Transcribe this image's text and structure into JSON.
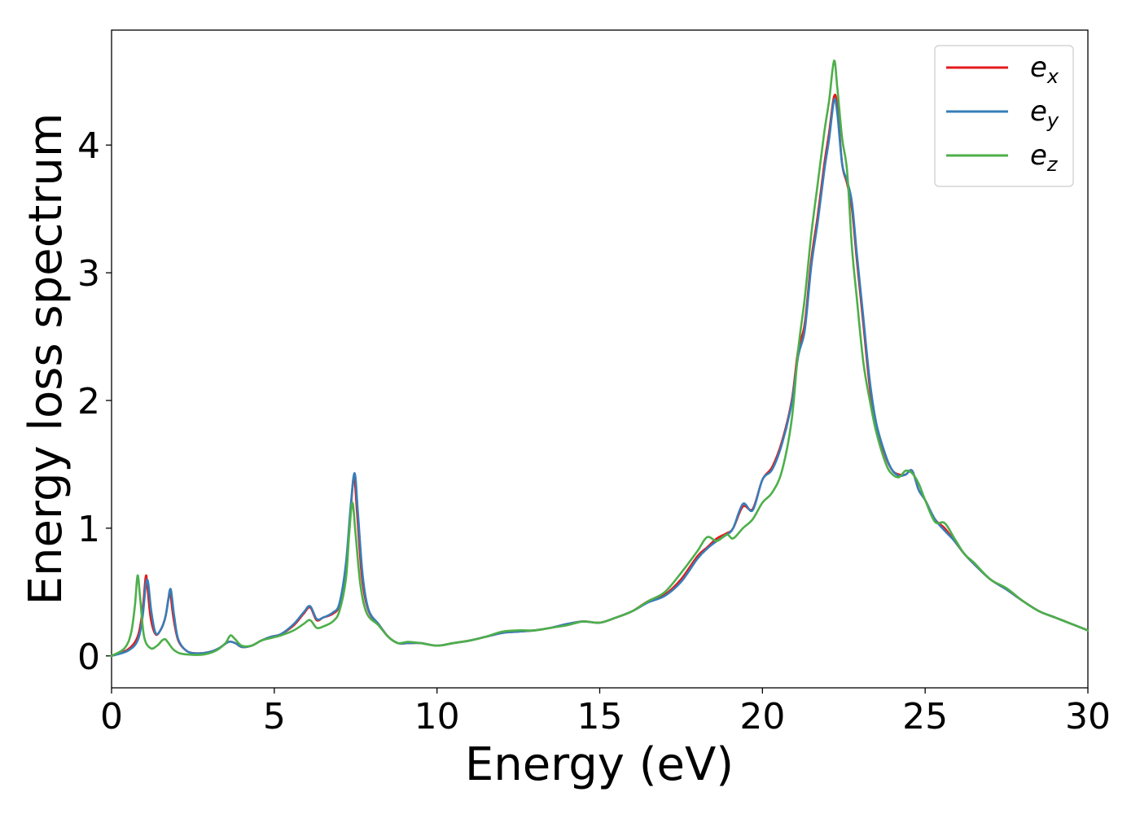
{
  "chart_data": {
    "type": "line",
    "title": "",
    "xlabel": "Energy (eV)",
    "ylabel": "Energy loss spectrum",
    "xlim": [
      0,
      30
    ],
    "ylim": [
      -0.25,
      4.9
    ],
    "xticks": [
      0,
      5,
      10,
      15,
      20,
      25,
      30
    ],
    "yticks": [
      0,
      1,
      2,
      3,
      4
    ],
    "grid": false,
    "legend": "top-right",
    "series": [
      {
        "name": "e",
        "subscript": "x",
        "color": "#e41a1c",
        "x": [
          0,
          0.5,
          0.8,
          0.95,
          1.05,
          1.1,
          1.2,
          1.35,
          1.5,
          1.65,
          1.75,
          1.8,
          1.9,
          2.05,
          2.3,
          2.6,
          3,
          3.3,
          3.6,
          3.8,
          4,
          4.3,
          4.6,
          4.9,
          5.2,
          5.6,
          5.9,
          6.1,
          6.3,
          6.5,
          6.8,
          7,
          7.2,
          7.35,
          7.45,
          7.55,
          7.7,
          7.9,
          8.2,
          8.5,
          8.8,
          9.1,
          9.5,
          10,
          10.5,
          11,
          11.5,
          12,
          12.5,
          13,
          13.5,
          14,
          14.5,
          15,
          15.5,
          16,
          16.5,
          17,
          17.5,
          18,
          18.3,
          18.6,
          18.9,
          19.1,
          19.4,
          19.7,
          20,
          20.3,
          20.6,
          20.9,
          21.1,
          21.3,
          21.5,
          21.7,
          21.9,
          22.05,
          22.2,
          22.3,
          22.45,
          22.6,
          22.75,
          22.9,
          23.1,
          23.3,
          23.5,
          23.8,
          24,
          24.2,
          24.4,
          24.6,
          24.8,
          25,
          25.3,
          25.6,
          25.9,
          26.2,
          26.5,
          27,
          27.5,
          28,
          28.5,
          29,
          29.5,
          30
        ],
        "values": [
          0,
          0.05,
          0.15,
          0.35,
          0.62,
          0.55,
          0.3,
          0.17,
          0.2,
          0.3,
          0.45,
          0.5,
          0.3,
          0.12,
          0.04,
          0.02,
          0.03,
          0.06,
          0.11,
          0.1,
          0.07,
          0.08,
          0.12,
          0.15,
          0.17,
          0.24,
          0.33,
          0.38,
          0.28,
          0.3,
          0.33,
          0.4,
          0.7,
          1.15,
          1.4,
          1.1,
          0.6,
          0.35,
          0.25,
          0.15,
          0.1,
          0.1,
          0.1,
          0.08,
          0.1,
          0.12,
          0.15,
          0.18,
          0.19,
          0.2,
          0.22,
          0.25,
          0.27,
          0.26,
          0.3,
          0.35,
          0.43,
          0.48,
          0.6,
          0.78,
          0.85,
          0.92,
          0.96,
          1.0,
          1.17,
          1.15,
          1.38,
          1.48,
          1.68,
          2.0,
          2.4,
          2.6,
          3.1,
          3.45,
          3.85,
          4.1,
          4.38,
          4.3,
          3.85,
          3.7,
          3.5,
          3.1,
          2.6,
          2.1,
          1.8,
          1.55,
          1.45,
          1.42,
          1.42,
          1.45,
          1.3,
          1.22,
          1.07,
          1.0,
          0.9,
          0.8,
          0.72,
          0.6,
          0.52,
          0.43,
          0.35,
          0.3,
          0.25,
          0.2
        ]
      },
      {
        "name": "e",
        "subscript": "y",
        "color": "#377eb8",
        "x": [
          0,
          0.5,
          0.8,
          0.95,
          1.05,
          1.12,
          1.22,
          1.35,
          1.5,
          1.65,
          1.75,
          1.82,
          1.92,
          2.05,
          2.3,
          2.6,
          3,
          3.3,
          3.6,
          3.8,
          4,
          4.3,
          4.6,
          4.9,
          5.2,
          5.6,
          5.9,
          6.1,
          6.3,
          6.5,
          6.8,
          7,
          7.2,
          7.35,
          7.47,
          7.57,
          7.72,
          7.9,
          8.2,
          8.5,
          8.8,
          9.1,
          9.5,
          10,
          10.5,
          11,
          11.5,
          12,
          12.5,
          13,
          13.5,
          14,
          14.5,
          15,
          15.5,
          16,
          16.5,
          17,
          17.5,
          18,
          18.3,
          18.6,
          18.9,
          19.1,
          19.4,
          19.7,
          20,
          20.3,
          20.6,
          20.9,
          21.1,
          21.3,
          21.5,
          21.7,
          21.9,
          22.05,
          22.2,
          22.3,
          22.45,
          22.6,
          22.75,
          22.9,
          23.1,
          23.3,
          23.5,
          23.8,
          24,
          24.2,
          24.4,
          24.6,
          24.8,
          25,
          25.3,
          25.6,
          25.9,
          26.2,
          26.5,
          27,
          27.5,
          28,
          28.5,
          29,
          29.5,
          30
        ],
        "values": [
          0,
          0.04,
          0.12,
          0.3,
          0.55,
          0.58,
          0.35,
          0.18,
          0.2,
          0.3,
          0.45,
          0.52,
          0.32,
          0.13,
          0.04,
          0.02,
          0.03,
          0.06,
          0.11,
          0.1,
          0.07,
          0.08,
          0.12,
          0.15,
          0.17,
          0.25,
          0.34,
          0.39,
          0.29,
          0.3,
          0.34,
          0.41,
          0.72,
          1.18,
          1.43,
          1.12,
          0.62,
          0.36,
          0.25,
          0.15,
          0.1,
          0.1,
          0.1,
          0.08,
          0.1,
          0.12,
          0.15,
          0.18,
          0.19,
          0.2,
          0.22,
          0.25,
          0.27,
          0.26,
          0.3,
          0.35,
          0.42,
          0.47,
          0.58,
          0.76,
          0.84,
          0.9,
          0.95,
          1.0,
          1.19,
          1.14,
          1.38,
          1.46,
          1.66,
          1.98,
          2.35,
          2.55,
          3.05,
          3.4,
          3.8,
          4.05,
          4.35,
          4.25,
          3.85,
          3.72,
          3.55,
          3.15,
          2.65,
          2.15,
          1.82,
          1.56,
          1.45,
          1.41,
          1.42,
          1.45,
          1.3,
          1.22,
          1.07,
          0.98,
          0.9,
          0.8,
          0.72,
          0.6,
          0.52,
          0.43,
          0.35,
          0.3,
          0.25,
          0.2
        ]
      },
      {
        "name": "e",
        "subscript": "z",
        "color": "#4daf4a",
        "x": [
          0,
          0.4,
          0.6,
          0.72,
          0.8,
          0.88,
          1,
          1.2,
          1.4,
          1.55,
          1.65,
          1.75,
          1.9,
          2.1,
          2.4,
          2.8,
          3.2,
          3.5,
          3.65,
          3.8,
          4,
          4.3,
          4.6,
          4.9,
          5.2,
          5.6,
          5.9,
          6.1,
          6.3,
          6.5,
          6.8,
          7,
          7.2,
          7.3,
          7.4,
          7.5,
          7.65,
          7.85,
          8.2,
          8.5,
          8.8,
          9.1,
          9.5,
          10,
          10.5,
          11,
          11.5,
          12,
          12.5,
          13,
          13.5,
          14,
          14.5,
          15,
          15.5,
          16,
          16.5,
          17,
          17.5,
          18,
          18.3,
          18.6,
          18.9,
          19.1,
          19.4,
          19.7,
          20,
          20.3,
          20.6,
          20.9,
          21.1,
          21.3,
          21.5,
          21.7,
          21.9,
          22.05,
          22.2,
          22.3,
          22.45,
          22.6,
          22.75,
          22.9,
          23.1,
          23.3,
          23.5,
          23.8,
          24,
          24.2,
          24.4,
          24.6,
          24.8,
          25,
          25.3,
          25.6,
          25.9,
          26.2,
          26.5,
          27,
          27.5,
          28,
          28.5,
          29,
          29.5,
          30
        ],
        "values": [
          0,
          0.06,
          0.18,
          0.4,
          0.63,
          0.45,
          0.15,
          0.06,
          0.08,
          0.12,
          0.13,
          0.1,
          0.05,
          0.02,
          0.01,
          0.01,
          0.04,
          0.1,
          0.16,
          0.13,
          0.08,
          0.08,
          0.12,
          0.14,
          0.16,
          0.2,
          0.25,
          0.28,
          0.22,
          0.23,
          0.27,
          0.35,
          0.6,
          0.95,
          1.2,
          0.95,
          0.55,
          0.33,
          0.24,
          0.15,
          0.1,
          0.11,
          0.1,
          0.08,
          0.1,
          0.12,
          0.15,
          0.19,
          0.2,
          0.2,
          0.22,
          0.24,
          0.27,
          0.26,
          0.3,
          0.35,
          0.43,
          0.5,
          0.65,
          0.82,
          0.93,
          0.9,
          0.95,
          0.92,
          1.0,
          1.07,
          1.2,
          1.28,
          1.45,
          1.85,
          2.4,
          2.8,
          3.3,
          3.7,
          4.1,
          4.35,
          4.66,
          4.45,
          4.05,
          3.8,
          3.2,
          2.8,
          2.3,
          2.0,
          1.75,
          1.5,
          1.42,
          1.4,
          1.45,
          1.43,
          1.35,
          1.22,
          1.05,
          1.04,
          0.92,
          0.8,
          0.73,
          0.6,
          0.53,
          0.43,
          0.35,
          0.3,
          0.25,
          0.2
        ]
      }
    ]
  }
}
